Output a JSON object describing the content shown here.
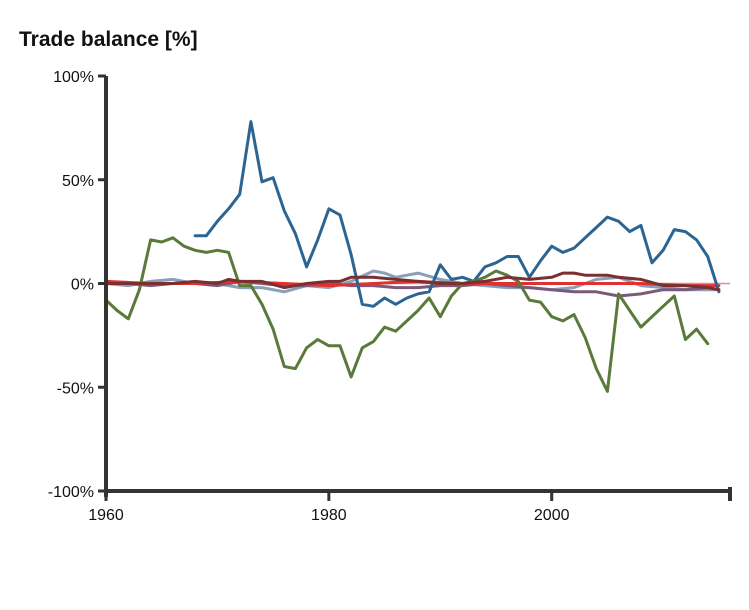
{
  "chart_data": {
    "type": "line",
    "title": "Trade balance [%]",
    "xlabel": "",
    "ylabel": "",
    "xlim": [
      1960,
      2016
    ],
    "ylim": [
      -100,
      100
    ],
    "grid": false,
    "legend": "none",
    "x_ticks": [
      1960,
      1980,
      2000
    ],
    "x_tick_labels": [
      "1960",
      "1980",
      "2000"
    ],
    "y_ticks": [
      100,
      50,
      0,
      -50,
      -100
    ],
    "y_tick_labels": [
      "100%",
      "50%",
      "0%",
      "-50%",
      "-100%"
    ],
    "reference_line": {
      "y": 0,
      "color": "#e88a8a"
    },
    "axis_color": "#333333",
    "series": [
      {
        "color": "#8a9fb8",
        "x": [
          1960,
          1962,
          1964,
          1966,
          1968,
          1970,
          1972,
          1974,
          1976,
          1978,
          1980,
          1982,
          1984,
          1985,
          1986,
          1988,
          1990,
          1992,
          1994,
          1996,
          1998,
          2000,
          2002,
          2004,
          2006,
          2008,
          2010,
          2012,
          2014,
          2015
        ],
        "y": [
          0,
          -1,
          1,
          2,
          0,
          0,
          -2,
          -2,
          -4,
          -1,
          -2,
          1,
          6,
          5,
          3,
          5,
          2,
          0,
          -1,
          -2,
          -2,
          -3,
          -2,
          2,
          3,
          -1,
          -2,
          -3,
          -3,
          -3
        ]
      },
      {
        "color": "#7a5a7a",
        "x": [
          1960,
          1962,
          1964,
          1966,
          1968,
          1970,
          1972,
          1974,
          1976,
          1978,
          1980,
          1982,
          1984,
          1986,
          1988,
          1990,
          1992,
          1994,
          1996,
          1998,
          2000,
          2002,
          2004,
          2006,
          2008,
          2010,
          2012,
          2014,
          2015
        ],
        "y": [
          0,
          0,
          -1,
          0,
          0,
          -1,
          1,
          0,
          -1,
          -1,
          0,
          -1,
          -1,
          -2,
          -2,
          -1,
          -1,
          0,
          -1,
          -2,
          -3,
          -4,
          -4,
          -6,
          -5,
          -3,
          -3,
          -2,
          -3
        ]
      },
      {
        "color": "#e03030",
        "x": [
          1960,
          1964,
          1968,
          1972,
          1976,
          1980,
          1984,
          1988,
          1992,
          1996,
          2000,
          2004,
          2008,
          2012,
          2015
        ],
        "y": [
          1,
          0,
          0,
          1,
          0,
          -1,
          0,
          1,
          0,
          0,
          0,
          0,
          0,
          -1,
          -1
        ]
      },
      {
        "color": "#2c6592",
        "x": [
          1968,
          1969,
          1970,
          1971,
          1972,
          1973,
          1974,
          1975,
          1976,
          1977,
          1978,
          1979,
          1980,
          1981,
          1982,
          1983,
          1984,
          1985,
          1986,
          1987,
          1988,
          1989,
          1990,
          1991,
          1992,
          1993,
          1994,
          1995,
          1996,
          1997,
          1998,
          1999,
          2000,
          2001,
          2002,
          2003,
          2004,
          2005,
          2006,
          2007,
          2008,
          2009,
          2010,
          2011,
          2012,
          2013,
          2014,
          2015
        ],
        "y": [
          23,
          23,
          30,
          36,
          43,
          78,
          49,
          51,
          35,
          24,
          8,
          21,
          36,
          33,
          14,
          -10,
          -11,
          -7,
          -10,
          -7,
          -5,
          -4,
          9,
          2,
          3,
          1,
          8,
          10,
          13,
          13,
          3,
          11,
          18,
          15,
          17,
          22,
          27,
          32,
          30,
          25,
          28,
          10,
          16,
          26,
          25,
          21,
          13,
          -4
        ]
      },
      {
        "color": "#5a7a3a",
        "x": [
          1960,
          1961,
          1962,
          1963,
          1964,
          1965,
          1966,
          1967,
          1968,
          1969,
          1970,
          1971,
          1972,
          1973,
          1974,
          1975,
          1976,
          1977,
          1978,
          1979,
          1980,
          1981,
          1982,
          1983,
          1984,
          1985,
          1986,
          1987,
          1988,
          1989,
          1990,
          1991,
          1992,
          1993,
          1994,
          1995,
          1996,
          1997,
          1998,
          1999,
          2000,
          2001,
          2002,
          2003,
          2004,
          2005,
          2006,
          2007,
          2008,
          2009,
          2010,
          2011,
          2012,
          2013,
          2014
        ],
        "y": [
          -8,
          -13,
          -17,
          -3,
          21,
          20,
          22,
          18,
          16,
          15,
          16,
          15,
          -1,
          -1,
          -10,
          -22,
          -40,
          -41,
          -31,
          -27,
          -30,
          -30,
          -45,
          -31,
          -28,
          -21,
          -23,
          -18,
          -13,
          -7,
          -16,
          -6,
          0,
          1,
          3,
          6,
          4,
          1,
          -8,
          -9,
          -16,
          -18,
          -15,
          -26,
          -41,
          -52,
          -5,
          -13,
          -21,
          -16,
          -11,
          -6,
          -27,
          -22,
          -29
        ]
      },
      {
        "color": "#7a3030",
        "x": [
          1960,
          1962,
          1964,
          1966,
          1968,
          1970,
          1971,
          1972,
          1974,
          1976,
          1978,
          1980,
          1981,
          1982,
          1984,
          1986,
          1988,
          1990,
          1992,
          1994,
          1996,
          1998,
          2000,
          2001,
          2002,
          2003,
          2004,
          2005,
          2006,
          2008,
          2010,
          2012,
          2014,
          2015
        ],
        "y": [
          0,
          0,
          0,
          0,
          1,
          0,
          2,
          1,
          1,
          -2,
          0,
          1,
          1,
          3,
          3,
          2,
          1,
          0,
          0,
          1,
          3,
          2,
          3,
          5,
          5,
          4,
          4,
          4,
          3,
          2,
          -1,
          -1,
          -2,
          -3
        ]
      }
    ]
  }
}
